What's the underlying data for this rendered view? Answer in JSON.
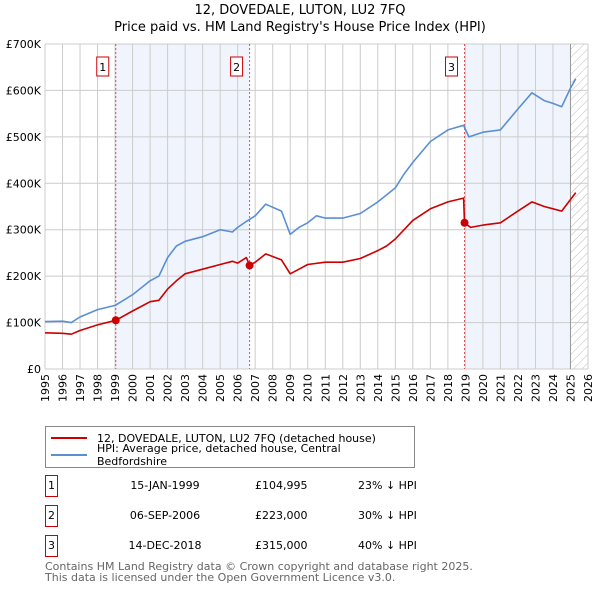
{
  "title": "12, DOVEDALE, LUTON, LU2 7FQ",
  "subtitle": "Price paid vs. HM Land Registry's House Price Index (HPI)",
  "chart_data": {
    "type": "line",
    "xlim": [
      1995,
      2026
    ],
    "ylim": [
      0,
      700000
    ],
    "x_ticks": [
      "1995",
      "1996",
      "1997",
      "1998",
      "1999",
      "2000",
      "2001",
      "2002",
      "2003",
      "2004",
      "2005",
      "2006",
      "2007",
      "2008",
      "2009",
      "2010",
      "2011",
      "2012",
      "2013",
      "2014",
      "2015",
      "2016",
      "2017",
      "2018",
      "2019",
      "2020",
      "2021",
      "2022",
      "2023",
      "2024",
      "2025",
      "2026"
    ],
    "y_ticks": [
      {
        "v": 0,
        "label": "£0"
      },
      {
        "v": 100000,
        "label": "£100K"
      },
      {
        "v": 200000,
        "label": "£200K"
      },
      {
        "v": 300000,
        "label": "£300K"
      },
      {
        "v": 400000,
        "label": "£400K"
      },
      {
        "v": 500000,
        "label": "£500K"
      },
      {
        "v": 600000,
        "label": "£600K"
      },
      {
        "v": 700000,
        "label": "£700K"
      }
    ],
    "grid": true,
    "shaded_ranges": [
      [
        1999.04,
        2006.68
      ],
      [
        2018.95,
        2025.0
      ]
    ],
    "hatched_range": [
      2025.0,
      2026
    ],
    "series": [
      {
        "name": "12, DOVEDALE, LUTON, LU2 7FQ (detached house)",
        "color": "#cc0000",
        "x": [
          1995,
          1996,
          1996.5,
          1997,
          1998,
          1999.04,
          2000,
          2001,
          2001.5,
          2002,
          2002.5,
          2003,
          2004,
          2005,
          2005.7,
          2006,
          2006.5,
          2006.68,
          2007,
          2007.6,
          2008.5,
          2009,
          2009.5,
          2010,
          2011,
          2012,
          2013,
          2014,
          2014.5,
          2015,
          2015.5,
          2016,
          2017,
          2018,
          2018.9,
          2018.95,
          2019.3,
          2020,
          2021,
          2022,
          2022.8,
          2023.5,
          2024,
          2024.5,
          2025,
          2025.3
        ],
        "y": [
          78000,
          77000,
          75000,
          83000,
          95000,
          104995,
          125000,
          145000,
          148000,
          172000,
          190000,
          205000,
          215000,
          225000,
          232000,
          228000,
          240000,
          223000,
          230000,
          248000,
          235000,
          205000,
          215000,
          225000,
          230000,
          230000,
          238000,
          255000,
          265000,
          280000,
          300000,
          320000,
          345000,
          360000,
          368000,
          315000,
          305000,
          310000,
          315000,
          340000,
          360000,
          350000,
          345000,
          340000,
          365000,
          380000
        ]
      },
      {
        "name": "HPI: Average price, detached house, Central Bedfordshire",
        "color": "#5b8fd4",
        "x": [
          1995,
          1996,
          1996.5,
          1997,
          1998,
          1999,
          2000,
          2001,
          2001.5,
          2002,
          2002.5,
          2003,
          2004,
          2005,
          2005.7,
          2006,
          2006.5,
          2007,
          2007.6,
          2008.5,
          2009,
          2009.5,
          2010,
          2010.5,
          2011,
          2012,
          2013,
          2014,
          2014.5,
          2015,
          2015.5,
          2016,
          2017,
          2018,
          2018.9,
          2019.2,
          2020,
          2021,
          2022,
          2022.8,
          2023.5,
          2024,
          2024.5,
          2025,
          2025.3
        ],
        "y": [
          102000,
          103000,
          100000,
          112000,
          128000,
          137000,
          160000,
          190000,
          200000,
          240000,
          265000,
          275000,
          285000,
          300000,
          295000,
          305000,
          318000,
          330000,
          355000,
          340000,
          290000,
          305000,
          315000,
          330000,
          325000,
          325000,
          335000,
          360000,
          375000,
          390000,
          420000,
          445000,
          490000,
          515000,
          525000,
          500000,
          510000,
          515000,
          560000,
          595000,
          578000,
          572000,
          565000,
          605000,
          625000
        ]
      }
    ],
    "sales": [
      {
        "label": "1",
        "x": 1999.04,
        "y": 104995
      },
      {
        "label": "2",
        "x": 2006.68,
        "y": 223000
      },
      {
        "label": "3",
        "x": 2018.95,
        "y": 315000
      }
    ],
    "legend_placement": "bottom"
  },
  "legend": {
    "red": "12, DOVEDALE, LUTON, LU2 7FQ (detached house)",
    "blue": "HPI: Average price, detached house, Central Bedfordshire"
  },
  "transactions": [
    {
      "num": "1",
      "date": "15-JAN-1999",
      "price": "£104,995",
      "hpi": "23% ↓ HPI"
    },
    {
      "num": "2",
      "date": "06-SEP-2006",
      "price": "£223,000",
      "hpi": "30% ↓ HPI"
    },
    {
      "num": "3",
      "date": "14-DEC-2018",
      "price": "£315,000",
      "hpi": "40% ↓ HPI"
    }
  ],
  "footer": {
    "line1": "Contains HM Land Registry data © Crown copyright and database right 2025.",
    "line2": "This data is licensed under the Open Government Licence v3.0."
  }
}
